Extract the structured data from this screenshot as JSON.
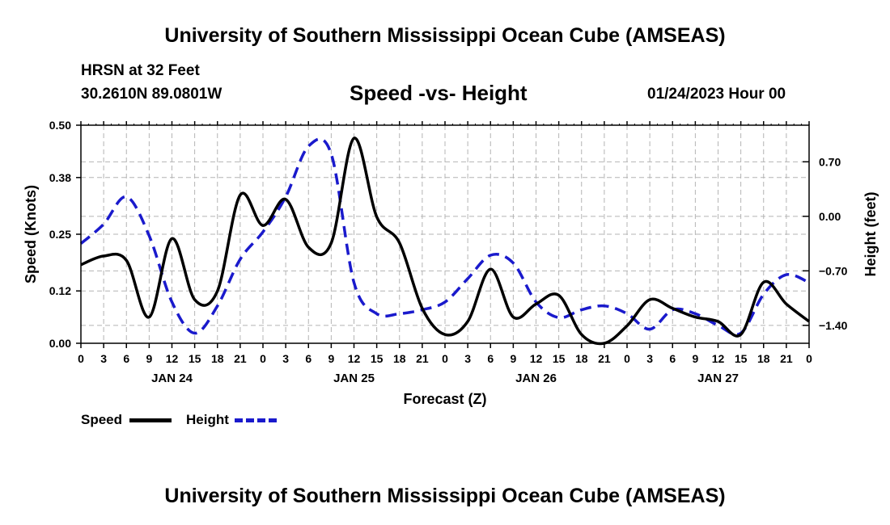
{
  "page": {
    "title": "University of Southern Mississippi Ocean Cube (AMSEAS)",
    "footer_title": "University of Southern Mississippi Ocean Cube (AMSEAS)",
    "station": "HRSN at 32 Feet",
    "coords": "30.2610N  89.0801W",
    "chart_title": "Speed -vs- Height",
    "date": "01/24/2023 Hour 00"
  },
  "legend": {
    "speed_label": "Speed",
    "height_label": "Height"
  },
  "colors": {
    "speed": "#000000",
    "height": "#1a1acc",
    "grid": "#b4b4b4"
  },
  "chart_data": {
    "type": "line",
    "title": "Speed -vs- Height",
    "xlabel": "Forecast (Z)",
    "ylabel": "Speed (Knots)",
    "y2label": "Height (feet)",
    "xlim": [
      0,
      96
    ],
    "ylim": [
      0,
      0.5
    ],
    "y2lim": [
      -1.63,
      1.17
    ],
    "x_tick_labels": [
      "0",
      "3",
      "6",
      "9",
      "12",
      "15",
      "18",
      "21",
      "0",
      "3",
      "6",
      "9",
      "12",
      "15",
      "18",
      "21",
      "0",
      "3",
      "6",
      "9",
      "12",
      "15",
      "18",
      "21",
      "0",
      "3",
      "6",
      "9",
      "12",
      "15",
      "18",
      "21",
      "0"
    ],
    "day_labels": [
      {
        "label": "JAN 24",
        "hour": 12
      },
      {
        "label": "JAN 25",
        "hour": 36
      },
      {
        "label": "JAN 26",
        "hour": 60
      },
      {
        "label": "JAN 27",
        "hour": 84
      }
    ],
    "y_ticks": [
      0.0,
      0.12,
      0.25,
      0.38,
      0.5
    ],
    "y_tick_labels": [
      "0.00",
      "0.12",
      "0.25",
      "0.38",
      "0.50"
    ],
    "y2_ticks": [
      -1.4,
      -0.7,
      0.0,
      0.7
    ],
    "y2_tick_labels": [
      "−1.40",
      "−0.70",
      "0.00",
      "0.70"
    ],
    "series": [
      {
        "name": "Speed",
        "axis": "left",
        "style": "solid",
        "x": [
          0,
          3,
          6,
          9,
          12,
          15,
          18,
          21,
          24,
          27,
          30,
          33,
          36,
          39,
          42,
          45,
          48,
          51,
          54,
          57,
          60,
          63,
          66,
          69,
          72,
          75,
          78,
          81,
          84,
          87,
          90,
          93,
          96
        ],
        "values": [
          0.18,
          0.2,
          0.19,
          0.06,
          0.24,
          0.1,
          0.12,
          0.34,
          0.27,
          0.33,
          0.22,
          0.23,
          0.47,
          0.29,
          0.23,
          0.08,
          0.02,
          0.05,
          0.17,
          0.06,
          0.09,
          0.11,
          0.02,
          0.0,
          0.04,
          0.1,
          0.08,
          0.06,
          0.05,
          0.02,
          0.14,
          0.09,
          0.05
        ]
      },
      {
        "name": "Height",
        "axis": "right",
        "style": "dashed",
        "x": [
          0,
          3,
          6,
          9,
          12,
          15,
          18,
          21,
          24,
          27,
          30,
          33,
          36,
          39,
          42,
          45,
          48,
          51,
          54,
          57,
          60,
          63,
          66,
          69,
          72,
          75,
          78,
          81,
          84,
          87,
          90,
          93,
          96
        ],
        "values": [
          -0.35,
          -0.1,
          0.25,
          -0.25,
          -1.1,
          -1.5,
          -1.15,
          -0.55,
          -0.2,
          0.25,
          0.9,
          0.8,
          -0.85,
          -1.25,
          -1.25,
          -1.2,
          -1.1,
          -0.8,
          -0.5,
          -0.6,
          -1.1,
          -1.3,
          -1.2,
          -1.15,
          -1.25,
          -1.45,
          -1.2,
          -1.25,
          -1.4,
          -1.5,
          -1.0,
          -0.75,
          -0.85
        ]
      }
    ]
  }
}
